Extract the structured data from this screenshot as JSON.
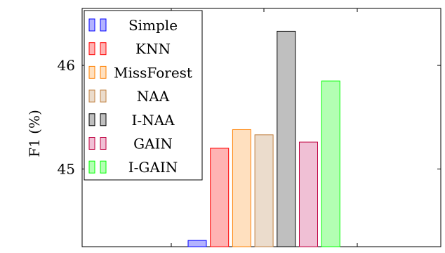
{
  "chart_data": {
    "type": "bar",
    "ylabel": "F1 (%)",
    "xlabel": "",
    "title": "",
    "ylim": [
      44.25,
      46.55
    ],
    "yticks": [
      45,
      46
    ],
    "ytick_labels": [
      "45",
      "46"
    ],
    "legend_position": "top-left",
    "series": [
      {
        "name": "Simple",
        "value": 44.31,
        "fill": "#b3b3ff",
        "stroke": "#0000ff"
      },
      {
        "name": "KNN",
        "value": 45.2,
        "fill": "#ffb3b3",
        "stroke": "#ff0000"
      },
      {
        "name": "MissForest",
        "value": 45.38,
        "fill": "#ffe0bf",
        "stroke": "#ff8000"
      },
      {
        "name": "NAA",
        "value": 45.33,
        "fill": "#ebdccc",
        "stroke": "#c08040"
      },
      {
        "name": "I-NAA",
        "value": 46.33,
        "fill": "#bfbfbf",
        "stroke": "#000000"
      },
      {
        "name": "GAIN",
        "value": 45.26,
        "fill": "#f0c0d5",
        "stroke": "#bf0040"
      },
      {
        "name": "I-GAIN",
        "value": 45.85,
        "fill": "#b3ffb3",
        "stroke": "#00ff00"
      }
    ]
  }
}
